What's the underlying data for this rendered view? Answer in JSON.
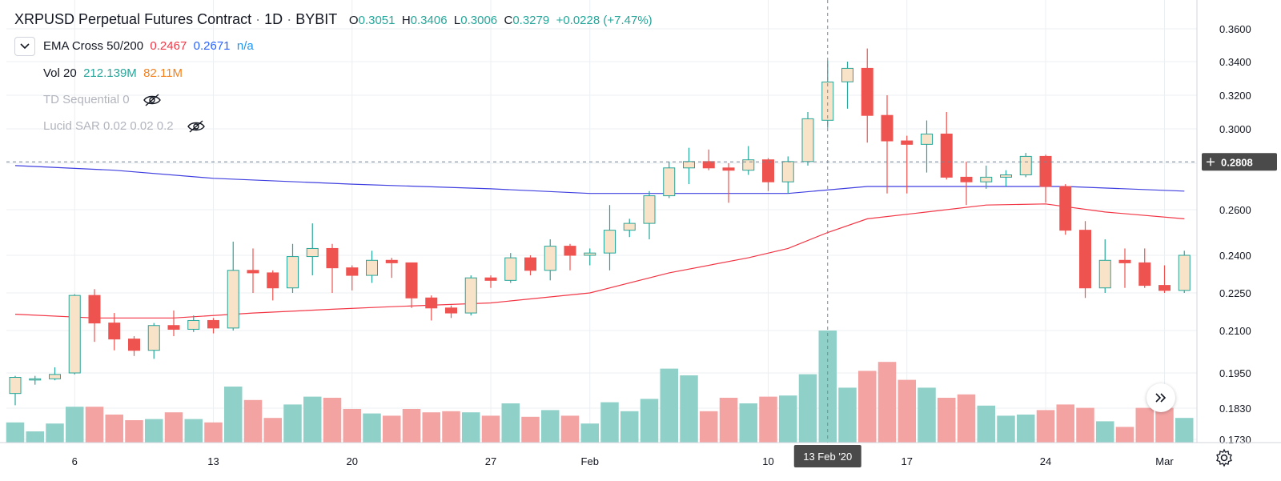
{
  "header": {
    "symbol": "XRPUSD Perpetual Futures Contract",
    "sep": "·",
    "interval": "1D",
    "exchange": "BYBIT",
    "ohlc": {
      "o_label": "O",
      "o_value": "0.3051",
      "h_label": "H",
      "h_value": "0.3406",
      "l_label": "L",
      "l_value": "0.3006",
      "c_label": "C",
      "c_value": "0.3279",
      "change": "+0.0228 (+7.47%)"
    }
  },
  "indicators": {
    "ema": {
      "name": "EMA Cross 50/200",
      "v1": "0.2467",
      "v2": "0.2671",
      "v3": "n/a"
    },
    "vol": {
      "name": "Vol 20",
      "v1": "212.139M",
      "v2": "82.11M"
    },
    "td": {
      "name": "TD Sequential 0"
    },
    "sar": {
      "name": "Lucid SAR 0.02 0.02 0.2"
    }
  },
  "colors": {
    "up": "#26a69a",
    "up_body": "#f9e3c8",
    "down": "#ef5350",
    "vol_up": "#8fd0c8",
    "vol_down": "#f4a3a3",
    "ema50": "#f23645",
    "ema200": "#3f3fe0",
    "grid": "#eceff2",
    "crosshair": "#758696"
  },
  "icons": {
    "collapse": "chevron-down-icon",
    "hidden": "eye-crossed-icon",
    "scroll": "double-chevron-right-icon",
    "settings": "gear-icon"
  },
  "chart_data": {
    "type": "candlestick",
    "series_name": "XRPUSD",
    "ylim": [
      0.173,
      0.367
    ],
    "price_ticks": [
      "0.3600",
      "0.3400",
      "0.3200",
      "0.3000",
      "0.2800",
      "0.2600",
      "0.2400",
      "0.2250",
      "0.2100",
      "0.1950",
      "0.1830",
      "0.1730"
    ],
    "price_tick_values": [
      0.36,
      0.34,
      0.32,
      0.3,
      0.28,
      0.26,
      0.24,
      0.225,
      0.21,
      0.195,
      0.183,
      0.173
    ],
    "time_ticks": [
      {
        "label": "6",
        "index": 3
      },
      {
        "label": "13",
        "index": 10
      },
      {
        "label": "20",
        "index": 17
      },
      {
        "label": "27",
        "index": 24
      },
      {
        "label": "Feb",
        "index": 29
      },
      {
        "label": "10",
        "index": 38
      },
      {
        "label": "17",
        "index": 45
      },
      {
        "label": "24",
        "index": 52
      },
      {
        "label": "Mar",
        "index": 58
      }
    ],
    "crosshair": {
      "price_label": "0.2808",
      "price": 0.2808,
      "date_label": "13 Feb '20",
      "index": 41
    },
    "candles": [
      {
        "d": "Jan 3",
        "o": 0.188,
        "h": 0.194,
        "l": 0.184,
        "c": 0.1935
      },
      {
        "d": "Jan 4",
        "o": 0.193,
        "h": 0.194,
        "l": 0.191,
        "c": 0.193
      },
      {
        "d": "Jan 5",
        "o": 0.193,
        "h": 0.197,
        "l": 0.1925,
        "c": 0.1945
      },
      {
        "d": "Jan 6",
        "o": 0.195,
        "h": 0.2245,
        "l": 0.1945,
        "c": 0.224
      },
      {
        "d": "Jan 7",
        "o": 0.224,
        "h": 0.2265,
        "l": 0.206,
        "c": 0.213
      },
      {
        "d": "Jan 8",
        "o": 0.213,
        "h": 0.217,
        "l": 0.203,
        "c": 0.207
      },
      {
        "d": "Jan 9",
        "o": 0.207,
        "h": 0.208,
        "l": 0.201,
        "c": 0.203
      },
      {
        "d": "Jan 10",
        "o": 0.203,
        "h": 0.213,
        "l": 0.2,
        "c": 0.212
      },
      {
        "d": "Jan 11",
        "o": 0.212,
        "h": 0.218,
        "l": 0.208,
        "c": 0.2105
      },
      {
        "d": "Jan 12",
        "o": 0.2105,
        "h": 0.216,
        "l": 0.2095,
        "c": 0.214
      },
      {
        "d": "Jan 13",
        "o": 0.214,
        "h": 0.215,
        "l": 0.209,
        "c": 0.211
      },
      {
        "d": "Jan 14",
        "o": 0.211,
        "h": 0.246,
        "l": 0.21,
        "c": 0.234
      },
      {
        "d": "Jan 15",
        "o": 0.234,
        "h": 0.243,
        "l": 0.225,
        "c": 0.233
      },
      {
        "d": "Jan 16",
        "o": 0.233,
        "h": 0.234,
        "l": 0.222,
        "c": 0.227
      },
      {
        "d": "Jan 17",
        "o": 0.227,
        "h": 0.245,
        "l": 0.225,
        "c": 0.2395
      },
      {
        "d": "Jan 18",
        "o": 0.2395,
        "h": 0.254,
        "l": 0.232,
        "c": 0.243
      },
      {
        "d": "Jan 19",
        "o": 0.243,
        "h": 0.245,
        "l": 0.225,
        "c": 0.235
      },
      {
        "d": "Jan 20",
        "o": 0.235,
        "h": 0.236,
        "l": 0.226,
        "c": 0.232
      },
      {
        "d": "Jan 21",
        "o": 0.232,
        "h": 0.242,
        "l": 0.229,
        "c": 0.238
      },
      {
        "d": "Jan 22",
        "o": 0.238,
        "h": 0.239,
        "l": 0.231,
        "c": 0.237
      },
      {
        "d": "Jan 23",
        "o": 0.237,
        "h": 0.237,
        "l": 0.219,
        "c": 0.223
      },
      {
        "d": "Jan 24",
        "o": 0.223,
        "h": 0.224,
        "l": 0.214,
        "c": 0.219
      },
      {
        "d": "Jan 25",
        "o": 0.219,
        "h": 0.22,
        "l": 0.215,
        "c": 0.217
      },
      {
        "d": "Jan 26",
        "o": 0.217,
        "h": 0.232,
        "l": 0.216,
        "c": 0.231
      },
      {
        "d": "Jan 27",
        "o": 0.231,
        "h": 0.232,
        "l": 0.227,
        "c": 0.23
      },
      {
        "d": "Jan 28",
        "o": 0.23,
        "h": 0.241,
        "l": 0.229,
        "c": 0.239
      },
      {
        "d": "Jan 29",
        "o": 0.239,
        "h": 0.24,
        "l": 0.232,
        "c": 0.234
      },
      {
        "d": "Jan 30",
        "o": 0.234,
        "h": 0.247,
        "l": 0.23,
        "c": 0.244
      },
      {
        "d": "Jan 31",
        "o": 0.244,
        "h": 0.245,
        "l": 0.234,
        "c": 0.24
      },
      {
        "d": "Feb 1",
        "o": 0.24,
        "h": 0.243,
        "l": 0.236,
        "c": 0.241
      },
      {
        "d": "Feb 2",
        "o": 0.241,
        "h": 0.262,
        "l": 0.234,
        "c": 0.251
      },
      {
        "d": "Feb 3",
        "o": 0.251,
        "h": 0.256,
        "l": 0.248,
        "c": 0.254
      },
      {
        "d": "Feb 4",
        "o": 0.254,
        "h": 0.268,
        "l": 0.247,
        "c": 0.266
      },
      {
        "d": "Feb 5",
        "o": 0.266,
        "h": 0.281,
        "l": 0.265,
        "c": 0.278
      },
      {
        "d": "Feb 6",
        "o": 0.278,
        "h": 0.289,
        "l": 0.271,
        "c": 0.281
      },
      {
        "d": "Feb 7",
        "o": 0.281,
        "h": 0.288,
        "l": 0.277,
        "c": 0.278
      },
      {
        "d": "Feb 8",
        "o": 0.278,
        "h": 0.28,
        "l": 0.263,
        "c": 0.277
      },
      {
        "d": "Feb 9",
        "o": 0.277,
        "h": 0.29,
        "l": 0.275,
        "c": 0.282
      },
      {
        "d": "Feb 10",
        "o": 0.282,
        "h": 0.283,
        "l": 0.268,
        "c": 0.272
      },
      {
        "d": "Feb 11",
        "o": 0.272,
        "h": 0.284,
        "l": 0.267,
        "c": 0.281
      },
      {
        "d": "Feb 12",
        "o": 0.281,
        "h": 0.31,
        "l": 0.279,
        "c": 0.306
      },
      {
        "d": "Feb 13",
        "o": 0.3051,
        "h": 0.3406,
        "l": 0.3006,
        "c": 0.3279
      },
      {
        "d": "Feb 14",
        "o": 0.328,
        "h": 0.34,
        "l": 0.312,
        "c": 0.336
      },
      {
        "d": "Feb 15",
        "o": 0.336,
        "h": 0.348,
        "l": 0.292,
        "c": 0.308
      },
      {
        "d": "Feb 16",
        "o": 0.308,
        "h": 0.32,
        "l": 0.267,
        "c": 0.293
      },
      {
        "d": "Feb 17",
        "o": 0.293,
        "h": 0.296,
        "l": 0.267,
        "c": 0.291
      },
      {
        "d": "Feb 18",
        "o": 0.291,
        "h": 0.305,
        "l": 0.276,
        "c": 0.297
      },
      {
        "d": "Feb 19",
        "o": 0.297,
        "h": 0.31,
        "l": 0.273,
        "c": 0.274
      },
      {
        "d": "Feb 20",
        "o": 0.274,
        "h": 0.281,
        "l": 0.262,
        "c": 0.272
      },
      {
        "d": "Feb 21",
        "o": 0.272,
        "h": 0.279,
        "l": 0.269,
        "c": 0.274
      },
      {
        "d": "Feb 22",
        "o": 0.274,
        "h": 0.277,
        "l": 0.27,
        "c": 0.275
      },
      {
        "d": "Feb 23",
        "o": 0.275,
        "h": 0.286,
        "l": 0.274,
        "c": 0.284
      },
      {
        "d": "Feb 24",
        "o": 0.284,
        "h": 0.285,
        "l": 0.263,
        "c": 0.27
      },
      {
        "d": "Feb 25",
        "o": 0.27,
        "h": 0.271,
        "l": 0.249,
        "c": 0.251
      },
      {
        "d": "Feb 26",
        "o": 0.251,
        "h": 0.255,
        "l": 0.223,
        "c": 0.227
      },
      {
        "d": "Feb 27",
        "o": 0.227,
        "h": 0.247,
        "l": 0.225,
        "c": 0.238
      },
      {
        "d": "Feb 28",
        "o": 0.238,
        "h": 0.243,
        "l": 0.227,
        "c": 0.237
      },
      {
        "d": "Feb 29",
        "o": 0.237,
        "h": 0.243,
        "l": 0.227,
        "c": 0.228
      },
      {
        "d": "Mar 1",
        "o": 0.228,
        "h": 0.236,
        "l": 0.225,
        "c": 0.226
      },
      {
        "d": "Mar 2",
        "o": 0.226,
        "h": 0.242,
        "l": 0.225,
        "c": 0.24
      }
    ],
    "volume_relative": [
      0.18,
      0.1,
      0.17,
      0.32,
      0.32,
      0.25,
      0.2,
      0.21,
      0.27,
      0.21,
      0.18,
      0.5,
      0.38,
      0.22,
      0.34,
      0.41,
      0.4,
      0.3,
      0.26,
      0.24,
      0.3,
      0.27,
      0.28,
      0.27,
      0.24,
      0.35,
      0.23,
      0.29,
      0.24,
      0.17,
      0.36,
      0.28,
      0.39,
      0.66,
      0.6,
      0.28,
      0.4,
      0.35,
      0.41,
      0.42,
      0.61,
      1.0,
      0.49,
      0.64,
      0.72,
      0.56,
      0.49,
      0.4,
      0.43,
      0.33,
      0.24,
      0.25,
      0.29,
      0.34,
      0.31,
      0.19,
      0.14,
      0.31,
      0.31,
      0.22
    ],
    "ema50": [
      {
        "i": 0,
        "v": 0.2165
      },
      {
        "i": 4,
        "v": 0.215
      },
      {
        "i": 8,
        "v": 0.215
      },
      {
        "i": 12,
        "v": 0.217
      },
      {
        "i": 16,
        "v": 0.2185
      },
      {
        "i": 19,
        "v": 0.2195
      },
      {
        "i": 24,
        "v": 0.221
      },
      {
        "i": 29,
        "v": 0.225
      },
      {
        "i": 33,
        "v": 0.233
      },
      {
        "i": 37,
        "v": 0.239
      },
      {
        "i": 39,
        "v": 0.243
      },
      {
        "i": 41,
        "v": 0.25
      },
      {
        "i": 43,
        "v": 0.256
      },
      {
        "i": 46,
        "v": 0.259
      },
      {
        "i": 49,
        "v": 0.262
      },
      {
        "i": 52,
        "v": 0.2625
      },
      {
        "i": 55,
        "v": 0.259
      },
      {
        "i": 59,
        "v": 0.256
      }
    ],
    "ema200": [
      {
        "i": 0,
        "v": 0.279
      },
      {
        "i": 5,
        "v": 0.277
      },
      {
        "i": 10,
        "v": 0.2735
      },
      {
        "i": 17,
        "v": 0.271
      },
      {
        "i": 24,
        "v": 0.269
      },
      {
        "i": 29,
        "v": 0.267
      },
      {
        "i": 34,
        "v": 0.267
      },
      {
        "i": 39,
        "v": 0.267
      },
      {
        "i": 43,
        "v": 0.27
      },
      {
        "i": 48,
        "v": 0.27
      },
      {
        "i": 53,
        "v": 0.27
      },
      {
        "i": 59,
        "v": 0.268
      }
    ]
  }
}
